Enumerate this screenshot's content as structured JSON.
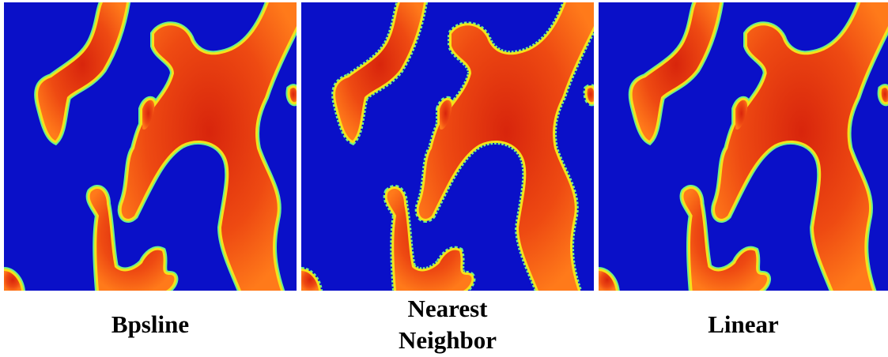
{
  "panels": [
    {
      "caption": "Bpsline"
    },
    {
      "caption": "Nearest Neighbor"
    },
    {
      "caption": "Linear"
    }
  ]
}
